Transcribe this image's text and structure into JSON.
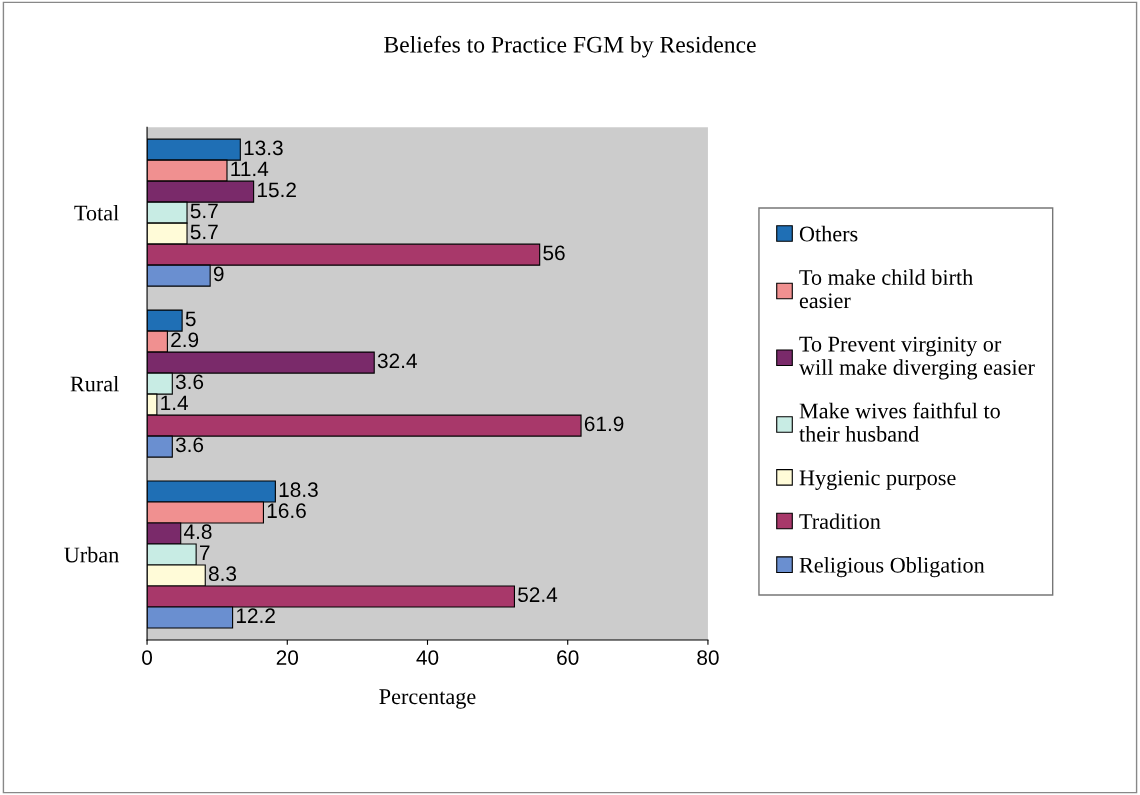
{
  "chart_data": {
    "type": "bar",
    "orientation": "horizontal",
    "title": "Beliefes to Practice FGM by Residence",
    "xlabel": "Percentage",
    "categories": [
      "Total",
      "Rural",
      "Urban"
    ],
    "series": [
      {
        "name": "Others",
        "color": "#1f6fb5",
        "values": [
          13.3,
          5,
          18.3
        ]
      },
      {
        "name": "To make child birth\neasier",
        "color": "#f09090",
        "values": [
          11.4,
          2.9,
          16.6
        ]
      },
      {
        "name": "To Prevent virginity or\nwill make diverging easier",
        "color": "#7a2a6a",
        "values": [
          15.2,
          32.4,
          4.8
        ]
      },
      {
        "name": "Make wives faithful to\ntheir husband",
        "color": "#c8ece4",
        "values": [
          5.7,
          3.6,
          7
        ]
      },
      {
        "name": "Hygienic purpose",
        "color": "#fffbd8",
        "values": [
          5.7,
          1.4,
          8.3
        ]
      },
      {
        "name": "Tradition",
        "color": "#a8386a",
        "values": [
          56,
          61.9,
          52.4
        ]
      },
      {
        "name": "Religious Obligation",
        "color": "#6a8fd0",
        "values": [
          9,
          3.6,
          12.2
        ]
      }
    ],
    "xlim": [
      0,
      80
    ],
    "xticks": [
      0,
      20,
      40,
      60,
      80
    ],
    "data_labels": true,
    "grid": false,
    "legend": "right"
  }
}
